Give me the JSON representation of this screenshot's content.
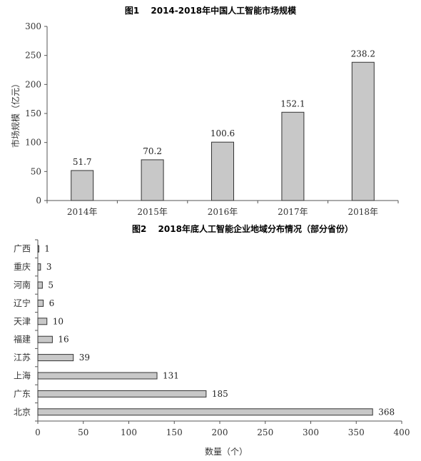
{
  "chart_data": [
    {
      "type": "bar",
      "title": "图1　 2014-2018年中国人工智能市场规模",
      "xlabel": "",
      "ylabel": "市场规模（亿元）",
      "categories": [
        "2014年",
        "2015年",
        "2016年",
        "2017年",
        "2018年"
      ],
      "values": [
        51.7,
        70.2,
        100.6,
        152.1,
        238.2
      ],
      "ylim": [
        0,
        300
      ],
      "yticks": [
        0,
        50,
        100,
        150,
        200,
        250,
        300
      ],
      "bar_color": "#c8c8c8",
      "grid": false
    },
    {
      "type": "bar",
      "orientation": "horizontal",
      "title": "图2　 2018年底人工智能企业地域分布情况（部分省份）",
      "xlabel": "数量（个）",
      "ylabel": "",
      "categories": [
        "广西",
        "重庆",
        "河南",
        "辽宁",
        "天津",
        "福建",
        "江苏",
        "上海",
        "广东",
        "北京"
      ],
      "values": [
        1,
        3,
        5,
        6,
        10,
        16,
        39,
        131,
        185,
        368
      ],
      "xlim": [
        0,
        400
      ],
      "xticks": [
        0,
        50,
        100,
        150,
        200,
        250,
        300,
        350,
        400
      ],
      "bar_color": "#c8c8c8",
      "grid": false
    }
  ]
}
